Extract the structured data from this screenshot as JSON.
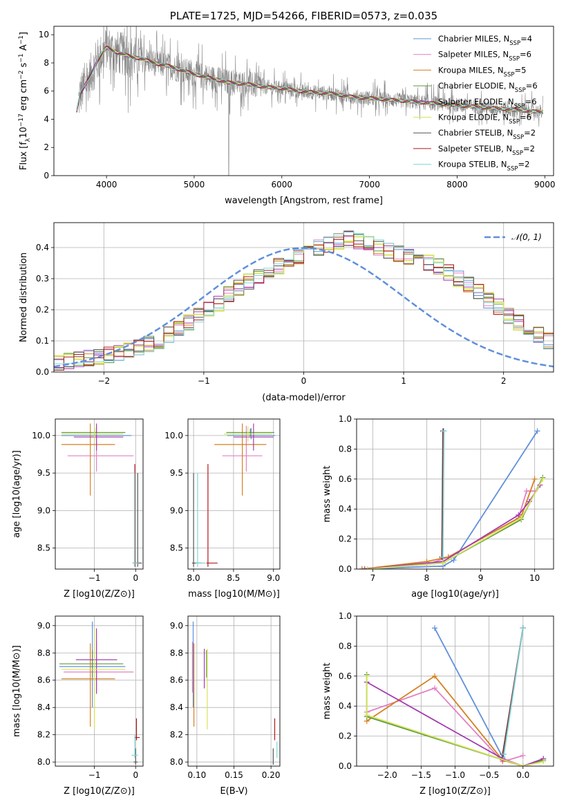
{
  "colors": {
    "Chabrier MILES": "#5f8fdc",
    "Salpeter MILES": "#e37fc2",
    "Kroupa MILES": "#d47f1f",
    "Chabrier ELODIE": "#5a9a3c",
    "Salpeter ELODIE": "#a33bb0",
    "Kroupa ELODIE": "#d6e35a",
    "Chabrier STELIB": "#555555",
    "Salpeter STELIB": "#b01818",
    "Kroupa STELIB": "#7ed6d8",
    "observed": "#888888",
    "normal_curve": "#5f8fdc"
  },
  "chart_data": [
    {
      "id": "spectrum",
      "type": "line",
      "title": "PLATE=1725, MJD=54266, FIBERID=0573, z=0.035",
      "xlabel": "wavelength [Angstrom, rest frame]",
      "ylabel_parts": [
        "Flux [f",
        "λ",
        "10",
        "−17",
        " erg cm",
        "−2",
        " s",
        "−1",
        " A",
        "−1",
        "]"
      ],
      "xlim": [
        3400,
        9100
      ],
      "ylim": [
        0,
        10.6
      ],
      "xticks": [
        4000,
        5000,
        6000,
        7000,
        8000,
        9000
      ],
      "yticks": [
        0,
        2,
        4,
        6,
        8,
        10
      ],
      "legend_position": "top-right",
      "legend": [
        {
          "base": "Chabrier MILES, N",
          "sub": "SSP",
          "tail": "=4"
        },
        {
          "base": "Salpeter MILES, N",
          "sub": "SSP",
          "tail": "=6"
        },
        {
          "base": "Kroupa MILES, N",
          "sub": "SSP",
          "tail": "=5"
        },
        {
          "base": "Chabrier ELODIE, N",
          "sub": "SSP",
          "tail": "=6"
        },
        {
          "base": "Salpeter ELODIE, N",
          "sub": "SSP",
          "tail": "=6"
        },
        {
          "base": "Kroupa ELODIE, N",
          "sub": "SSP",
          "tail": "=6"
        },
        {
          "base": "Chabrier STELIB, N",
          "sub": "SSP",
          "tail": "=2"
        },
        {
          "base": "Salpeter STELIB, N",
          "sub": "SSP",
          "tail": "=2"
        },
        {
          "base": "Kroupa STELIB, N",
          "sub": "SSP",
          "tail": "=2"
        }
      ],
      "model_curve": {
        "x": [
          3650,
          3700,
          3800,
          3900,
          4000,
          4100,
          4200,
          4300,
          4400,
          4500,
          4600,
          4700,
          4800,
          4900,
          5000,
          5200,
          5400,
          5600,
          5800,
          6000,
          6200,
          6400,
          6600,
          6800,
          7000,
          7200,
          7400,
          7600,
          7800,
          8000,
          8200,
          8400,
          8600,
          8800,
          9000
        ],
        "y": [
          4.3,
          5.8,
          6.9,
          8.2,
          9.1,
          8.8,
          8.6,
          8.4,
          8.3,
          8.1,
          7.9,
          7.8,
          7.6,
          7.4,
          7.2,
          6.9,
          6.6,
          6.5,
          6.3,
          6.2,
          6.0,
          5.9,
          5.8,
          5.6,
          5.5,
          5.4,
          5.3,
          5.2,
          5.1,
          5.0,
          4.9,
          4.8,
          4.7,
          4.6,
          4.5
        ]
      }
    },
    {
      "id": "residuals",
      "type": "histogram",
      "xlabel": "(data-model)/error",
      "ylabel": "Normed distribution",
      "xlim": [
        -2.5,
        2.5
      ],
      "ylim": [
        0,
        0.48
      ],
      "xticks": [
        -2,
        -1,
        0,
        1,
        2
      ],
      "yticks": [
        0.0,
        0.1,
        0.2,
        0.3,
        0.4
      ],
      "legend_position": "top-right",
      "legend": [
        {
          "label": "𝒩(0, 1)"
        }
      ],
      "bin_width": 0.1,
      "bin_start": -2.5,
      "hist_values": [
        0.03,
        0.035,
        0.04,
        0.045,
        0.05,
        0.055,
        0.06,
        0.07,
        0.08,
        0.09,
        0.1,
        0.12,
        0.14,
        0.16,
        0.18,
        0.2,
        0.22,
        0.25,
        0.27,
        0.29,
        0.31,
        0.33,
        0.34,
        0.35,
        0.37,
        0.38,
        0.4,
        0.41,
        0.42,
        0.43,
        0.42,
        0.41,
        0.4,
        0.39,
        0.38,
        0.37,
        0.36,
        0.35,
        0.34,
        0.32,
        0.3,
        0.28,
        0.26,
        0.23,
        0.21,
        0.18,
        0.16,
        0.14,
        0.12,
        0.1
      ]
    },
    {
      "id": "age_vs_Z",
      "type": "errorbar",
      "xlabel": "Z [log10(Z/Z⊙)]",
      "ylabel": "age [log10(age/yr)]",
      "xlim": [
        -1.95,
        0.18
      ],
      "ylim": [
        8.22,
        10.22
      ],
      "xticks": [
        -1,
        0
      ],
      "yticks": [
        8.5,
        9.0,
        9.5,
        10.0
      ],
      "points": [
        {
          "model": "Chabrier MILES",
          "x": -1.0,
          "y": 10.0,
          "xerr": [
            0.8,
            0.9
          ],
          "yerr": [
            0.05,
            0.1
          ]
        },
        {
          "model": "Salpeter MILES",
          "x": -0.95,
          "y": 9.73,
          "xerr": [
            0.7,
            0.9
          ],
          "yerr": [
            0.21,
            0.4
          ]
        },
        {
          "model": "Kroupa MILES",
          "x": -1.1,
          "y": 9.88,
          "xerr": [
            0.7,
            0.6
          ],
          "yerr": [
            0.68,
            0.28
          ]
        },
        {
          "model": "Chabrier ELODIE",
          "x": -1.0,
          "y": 10.04,
          "xerr": [
            0.8,
            0.75
          ],
          "yerr": [
            0.05,
            0.05
          ]
        },
        {
          "model": "Salpeter ELODIE",
          "x": -0.95,
          "y": 9.98,
          "xerr": [
            0.55,
            0.65
          ],
          "yerr": [
            0.18,
            0.18
          ]
        },
        {
          "model": "Kroupa ELODIE",
          "x": -1.0,
          "y": 10.02,
          "xerr": [
            0.8,
            0.7
          ],
          "yerr": [
            0.1,
            0.1
          ]
        },
        {
          "model": "Chabrier STELIB",
          "x": 0.05,
          "y": 8.3,
          "xerr": [
            0.05,
            0.1
          ],
          "yerr": [
            0.05,
            1.2
          ]
        },
        {
          "model": "Salpeter STELIB",
          "x": -0.02,
          "y": 8.3,
          "xerr": [
            0.05,
            0.1
          ],
          "yerr": [
            0.05,
            1.32
          ]
        },
        {
          "model": "Kroupa STELIB",
          "x": -0.03,
          "y": 8.3,
          "xerr": [
            0.05,
            0.1
          ],
          "yerr": [
            0.05,
            1.2
          ]
        }
      ]
    },
    {
      "id": "age_vs_mass",
      "type": "errorbar",
      "xlabel": "mass [log10(M/M⊙)]",
      "ylabel": "",
      "xlim": [
        7.93,
        9.08
      ],
      "ylim": [
        8.22,
        10.22
      ],
      "xticks": [
        8.0,
        8.5,
        9.0
      ],
      "yticks": [
        8.5,
        9.0,
        9.5,
        10.0
      ],
      "points": [
        {
          "model": "Chabrier MILES",
          "x": 8.72,
          "y": 10.0,
          "xerr": [
            0.3,
            0.3
          ],
          "yerr": [
            0.05,
            0.1
          ]
        },
        {
          "model": "Salpeter MILES",
          "x": 8.66,
          "y": 9.73,
          "xerr": [
            0.3,
            0.2
          ],
          "yerr": [
            0.21,
            0.4
          ]
        },
        {
          "model": "Kroupa MILES",
          "x": 8.61,
          "y": 9.88,
          "xerr": [
            0.35,
            0.3
          ],
          "yerr": [
            0.68,
            0.28
          ]
        },
        {
          "model": "Chabrier ELODIE",
          "x": 8.71,
          "y": 10.04,
          "xerr": [
            0.3,
            0.3
          ],
          "yerr": [
            0.05,
            0.05
          ]
        },
        {
          "model": "Salpeter ELODIE",
          "x": 8.75,
          "y": 9.98,
          "xerr": [
            0.25,
            0.25
          ],
          "yerr": [
            0.18,
            0.18
          ]
        },
        {
          "model": "Kroupa ELODIE",
          "x": 8.68,
          "y": 10.02,
          "xerr": [
            0.3,
            0.3
          ],
          "yerr": [
            0.1,
            0.1
          ]
        },
        {
          "model": "Chabrier STELIB",
          "x": 8.0,
          "y": 8.3,
          "xerr": [
            0.02,
            0.1
          ],
          "yerr": [
            0.05,
            1.2
          ]
        },
        {
          "model": "Salpeter STELIB",
          "x": 8.18,
          "y": 8.3,
          "xerr": [
            0.02,
            0.12
          ],
          "yerr": [
            0.05,
            1.32
          ]
        },
        {
          "model": "Kroupa STELIB",
          "x": 8.05,
          "y": 8.3,
          "xerr": [
            0.02,
            0.1
          ],
          "yerr": [
            0.05,
            1.2
          ]
        }
      ]
    },
    {
      "id": "cumulative_mass_vs_age",
      "type": "line",
      "xlabel": "age [log10(age/yr)]",
      "ylabel": "mass weight",
      "xlim": [
        6.7,
        10.35
      ],
      "ylim": [
        0,
        1.0
      ],
      "xticks": [
        7,
        8,
        9,
        10
      ],
      "yticks": [
        0.0,
        0.2,
        0.4,
        0.6,
        0.8,
        1.0
      ],
      "series": [
        {
          "model": "Chabrier MILES",
          "x": [
            6.8,
            8.3,
            8.5,
            10.05
          ],
          "y": [
            0.0,
            0.02,
            0.06,
            0.92
          ]
        },
        {
          "model": "Salpeter MILES",
          "x": [
            6.8,
            8.0,
            8.4,
            9.7,
            9.85,
            10.0
          ],
          "y": [
            0.0,
            0.03,
            0.08,
            0.34,
            0.52,
            0.52
          ]
        },
        {
          "model": "Kroupa MILES",
          "x": [
            6.8,
            8.0,
            8.4,
            9.75,
            10.0
          ],
          "y": [
            0.0,
            0.05,
            0.08,
            0.35,
            0.6
          ]
        },
        {
          "model": "Chabrier ELODIE",
          "x": [
            6.9,
            8.3,
            9.75,
            10.15
          ],
          "y": [
            0.0,
            0.04,
            0.33,
            0.61
          ]
        },
        {
          "model": "Salpeter ELODIE",
          "x": [
            6.85,
            8.3,
            9.7,
            9.9,
            10.1
          ],
          "y": [
            0.0,
            0.05,
            0.36,
            0.45,
            0.56
          ]
        },
        {
          "model": "Kroupa ELODIE",
          "x": [
            6.9,
            8.3,
            9.75,
            10.15
          ],
          "y": [
            0.0,
            0.04,
            0.34,
            0.6
          ]
        },
        {
          "model": "Chabrier STELIB",
          "x": [
            8.28,
            8.3
          ],
          "y": [
            0.08,
            0.92
          ]
        },
        {
          "model": "Salpeter STELIB",
          "x": [
            8.29,
            8.31
          ],
          "y": [
            0.08,
            0.92
          ]
        },
        {
          "model": "Kroupa STELIB",
          "x": [
            8.3,
            8.32
          ],
          "y": [
            0.08,
            0.92
          ]
        }
      ]
    },
    {
      "id": "mass_vs_Z",
      "type": "errorbar",
      "xlabel": "Z [log10(Z/Z⊙)]",
      "ylabel": "mass [log10(M/M⊙)]",
      "xlim": [
        -1.95,
        0.18
      ],
      "ylim": [
        7.97,
        9.07
      ],
      "xticks": [
        -1,
        0
      ],
      "yticks": [
        8.0,
        8.2,
        8.4,
        8.6,
        8.8,
        9.0
      ],
      "points": [
        {
          "model": "Chabrier MILES",
          "x": -1.05,
          "y": 8.7,
          "xerr": [
            0.8,
            0.8
          ],
          "yerr": [
            0.3,
            0.33
          ]
        },
        {
          "model": "Salpeter MILES",
          "x": -0.95,
          "y": 8.66,
          "xerr": [
            0.8,
            0.9
          ],
          "yerr": [
            0.15,
            0.22
          ]
        },
        {
          "model": "Kroupa MILES",
          "x": -1.1,
          "y": 8.61,
          "xerr": [
            0.7,
            0.6
          ],
          "yerr": [
            0.35,
            0.26
          ]
        },
        {
          "model": "Chabrier ELODIE",
          "x": -1.05,
          "y": 8.72,
          "xerr": [
            0.8,
            0.75
          ],
          "yerr": [
            0.1,
            0.1
          ]
        },
        {
          "model": "Salpeter ELODIE",
          "x": -0.95,
          "y": 8.75,
          "xerr": [
            0.5,
            0.5
          ],
          "yerr": [
            0.25,
            0.23
          ]
        },
        {
          "model": "Kroupa ELODIE",
          "x": -1.0,
          "y": 8.68,
          "xerr": [
            0.8,
            0.75
          ],
          "yerr": [
            0.44,
            0.3
          ]
        },
        {
          "model": "Chabrier STELIB",
          "x": 0.0,
          "y": 8.0,
          "xerr": [
            0.05,
            0.05
          ],
          "yerr": [
            0.02,
            0.1
          ]
        },
        {
          "model": "Salpeter STELIB",
          "x": 0.02,
          "y": 8.18,
          "xerr": [
            0.04,
            0.08
          ],
          "yerr": [
            0.02,
            0.14
          ]
        },
        {
          "model": "Kroupa STELIB",
          "x": -0.02,
          "y": 8.05,
          "xerr": [
            0.08,
            0.08
          ],
          "yerr": [
            0.02,
            0.15
          ]
        }
      ]
    },
    {
      "id": "mass_vs_EBV",
      "type": "errorbar",
      "xlabel": "E(B-V)",
      "ylabel": "",
      "xlim": [
        0.088,
        0.212
      ],
      "ylim": [
        7.97,
        9.07
      ],
      "xticks": [
        0.1,
        0.15,
        0.2
      ],
      "yticks": [
        8.0,
        8.2,
        8.4,
        8.6,
        8.8,
        9.0
      ],
      "points": [
        {
          "model": "Chabrier MILES",
          "x": 0.095,
          "y": 8.7,
          "xerr": [
            0.0,
            0.0
          ],
          "yerr": [
            0.3,
            0.33
          ]
        },
        {
          "model": "Salpeter MILES",
          "x": 0.094,
          "y": 8.66,
          "xerr": [
            0.0,
            0.0
          ],
          "yerr": [
            0.15,
            0.22
          ]
        },
        {
          "model": "Kroupa MILES",
          "x": 0.096,
          "y": 8.61,
          "xerr": [
            0.0,
            0.0
          ],
          "yerr": [
            0.35,
            0.26
          ]
        },
        {
          "model": "Chabrier ELODIE",
          "x": 0.113,
          "y": 8.72,
          "xerr": [
            0.0,
            0.0
          ],
          "yerr": [
            0.1,
            0.1
          ]
        },
        {
          "model": "Salpeter ELODIE",
          "x": 0.11,
          "y": 8.75,
          "xerr": [
            0.0,
            0.0
          ],
          "yerr": [
            0.21,
            0.08
          ]
        },
        {
          "model": "Kroupa ELODIE",
          "x": 0.114,
          "y": 8.68,
          "xerr": [
            0.0,
            0.0
          ],
          "yerr": [
            0.44,
            0.15
          ]
        },
        {
          "model": "Chabrier STELIB",
          "x": 0.203,
          "y": 8.0,
          "xerr": [
            0.0,
            0.0
          ],
          "yerr": [
            0.02,
            0.1
          ]
        },
        {
          "model": "Salpeter STELIB",
          "x": 0.205,
          "y": 8.18,
          "xerr": [
            0.0,
            0.0
          ],
          "yerr": [
            0.02,
            0.14
          ]
        },
        {
          "model": "Kroupa STELIB",
          "x": 0.208,
          "y": 8.05,
          "xerr": [
            0.0,
            0.0
          ],
          "yerr": [
            0.02,
            0.1
          ]
        }
      ]
    },
    {
      "id": "cumulative_mass_vs_Z",
      "type": "line",
      "xlabel": "Z [log10(Z/Z⊙)]",
      "ylabel": "mass weight",
      "xlim": [
        -2.45,
        0.45
      ],
      "ylim": [
        0,
        1.0
      ],
      "xticks": [
        -2.0,
        -1.5,
        -1.0,
        -0.5,
        0.0
      ],
      "yticks": [
        0.0,
        0.2,
        0.4,
        0.6,
        0.8,
        1.0
      ],
      "series": [
        {
          "model": "Chabrier MILES",
          "x": [
            -1.3,
            -0.3,
            0.0
          ],
          "y": [
            0.92,
            0.06,
            0.92
          ]
        },
        {
          "model": "Salpeter MILES",
          "x": [
            -2.3,
            -1.3,
            -0.3,
            0.0
          ],
          "y": [
            0.36,
            0.52,
            0.03,
            0.07
          ]
        },
        {
          "model": "Kroupa MILES",
          "x": [
            -2.3,
            -1.3,
            -0.3,
            0.0
          ],
          "y": [
            0.3,
            0.6,
            0.04,
            0.0
          ]
        },
        {
          "model": "Chabrier ELODIE",
          "x": [
            -2.3,
            -2.3,
            0.0,
            0.3
          ],
          "y": [
            0.61,
            0.33,
            0.0,
            0.04
          ]
        },
        {
          "model": "Salpeter ELODIE",
          "x": [
            -2.3,
            -0.3,
            0.0,
            0.3
          ],
          "y": [
            0.56,
            0.05,
            0.0,
            0.05
          ]
        },
        {
          "model": "Kroupa ELODIE",
          "x": [
            -2.3,
            -2.3,
            0.0,
            0.3
          ],
          "y": [
            0.6,
            0.34,
            0.0,
            0.03
          ]
        },
        {
          "model": "Chabrier STELIB",
          "x": [
            -0.3,
            0.0
          ],
          "y": [
            0.08,
            0.92
          ]
        },
        {
          "model": "Salpeter STELIB",
          "x": [
            -0.29,
            0.0
          ],
          "y": [
            0.08,
            0.92
          ]
        },
        {
          "model": "Kroupa STELIB",
          "x": [
            -0.28,
            0.0
          ],
          "y": [
            0.08,
            0.92
          ]
        }
      ]
    }
  ]
}
